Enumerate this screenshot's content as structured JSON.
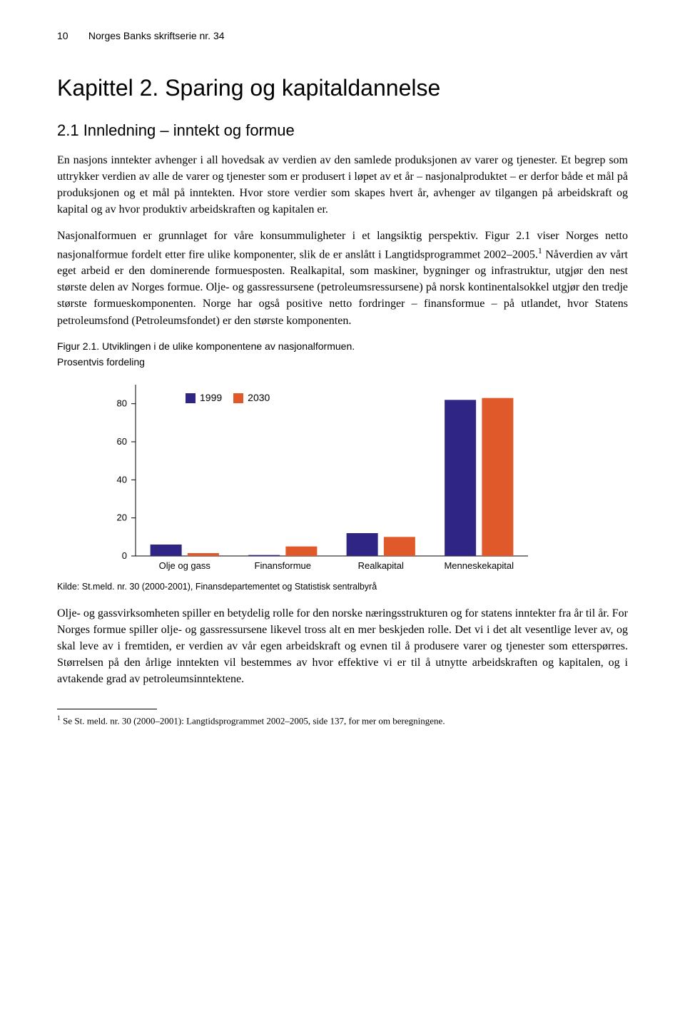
{
  "header": {
    "page_number": "10",
    "series_title": "Norges Banks skriftserie nr. 34"
  },
  "chapter": {
    "title": "Kapittel 2. Sparing og kapitaldannelse"
  },
  "section": {
    "heading": "2.1 Innledning – inntekt og formue"
  },
  "paragraphs": {
    "p1": "En nasjons inntekter avhenger i all hovedsak av verdien av den samlede produksjonen av varer og tjenester. Et begrep som uttrykker verdien av alle de varer og tjenester som er produsert i løpet av et år – nasjonalproduktet – er derfor både et mål på produksjonen og et mål på inntekten. Hvor store verdier som skapes hvert år, avhenger av tilgangen på arbeidskraft og kapital og av hvor produktiv arbeidskraften og kapitalen er.",
    "p2_before_sup": "Nasjonalformuen er grunnlaget for våre konsummuligheter i et langsiktig perspektiv. Figur 2.1 viser Norges netto nasjonalformue fordelt etter fire ulike komponenter, slik de er anslått i Langtidsprogrammet 2002–2005.",
    "p2_after_sup": " Nåverdien av vårt eget arbeid er den dominerende formuesposten. Realkapital, som maskiner, bygninger og infrastruktur, utgjør den nest største delen av Norges formue. Olje- og gassressursene (petroleumsressursene) på norsk kontinentalsokkel utgjør den tredje største formueskomponenten. Norge har også positive netto fordringer – finansformue – på utlandet, hvor Statens petroleumsfond (Petroleumsfondet) er den største komponenten.",
    "p2_sup": "1",
    "p3": "Olje- og gassvirksomheten spiller en betydelig rolle for den norske næringsstrukturen og for statens inntekter fra år til år. For Norges formue spiller olje- og gassressursene likevel tross alt en mer beskjeden rolle. Det vi i det alt vesentlige lever av, og skal leve av i fremtiden, er verdien av vår egen arbeidskraft og evnen til å produsere varer og tjenester som etterspørres. Størrelsen på den årlige inntekten vil bestemmes av hvor effektive vi er til å utnytte arbeidskraften og kapitalen, og i avtakende grad av petroleumsinntektene."
  },
  "figure": {
    "title": "Figur 2.1. Utviklingen i de ulike komponentene av nasjonalformuen.",
    "subtitle": "Prosentvis fordeling",
    "type": "grouped-bar",
    "categories": [
      "Olje og gass",
      "Finansformue",
      "Realkapital",
      "Menneskekapital"
    ],
    "series": [
      {
        "label": "1999",
        "color": "#2e2584",
        "values": [
          6,
          0.5,
          12,
          82
        ]
      },
      {
        "label": "2030",
        "color": "#e0592a",
        "values": [
          1.5,
          5,
          10,
          83
        ]
      }
    ],
    "y_ticks": [
      0,
      20,
      40,
      60,
      80
    ],
    "ylim": [
      0,
      90
    ],
    "background_color": "#ffffff",
    "axis_color": "#000000",
    "tick_color": "#000000",
    "bar_width": 0.32,
    "group_gap": 0.06,
    "axis_fontsize": 13,
    "legend_fontsize": 14,
    "source": "Kilde: St.meld. nr. 30 (2000-2001), Finansdepartementet og Statistisk sentralbyrå"
  },
  "footnote": {
    "marker": "1",
    "text": " Se St. meld. nr. 30 (2000–2001): Langtidsprogrammet 2002–2005, side 137, for mer om beregningene."
  }
}
